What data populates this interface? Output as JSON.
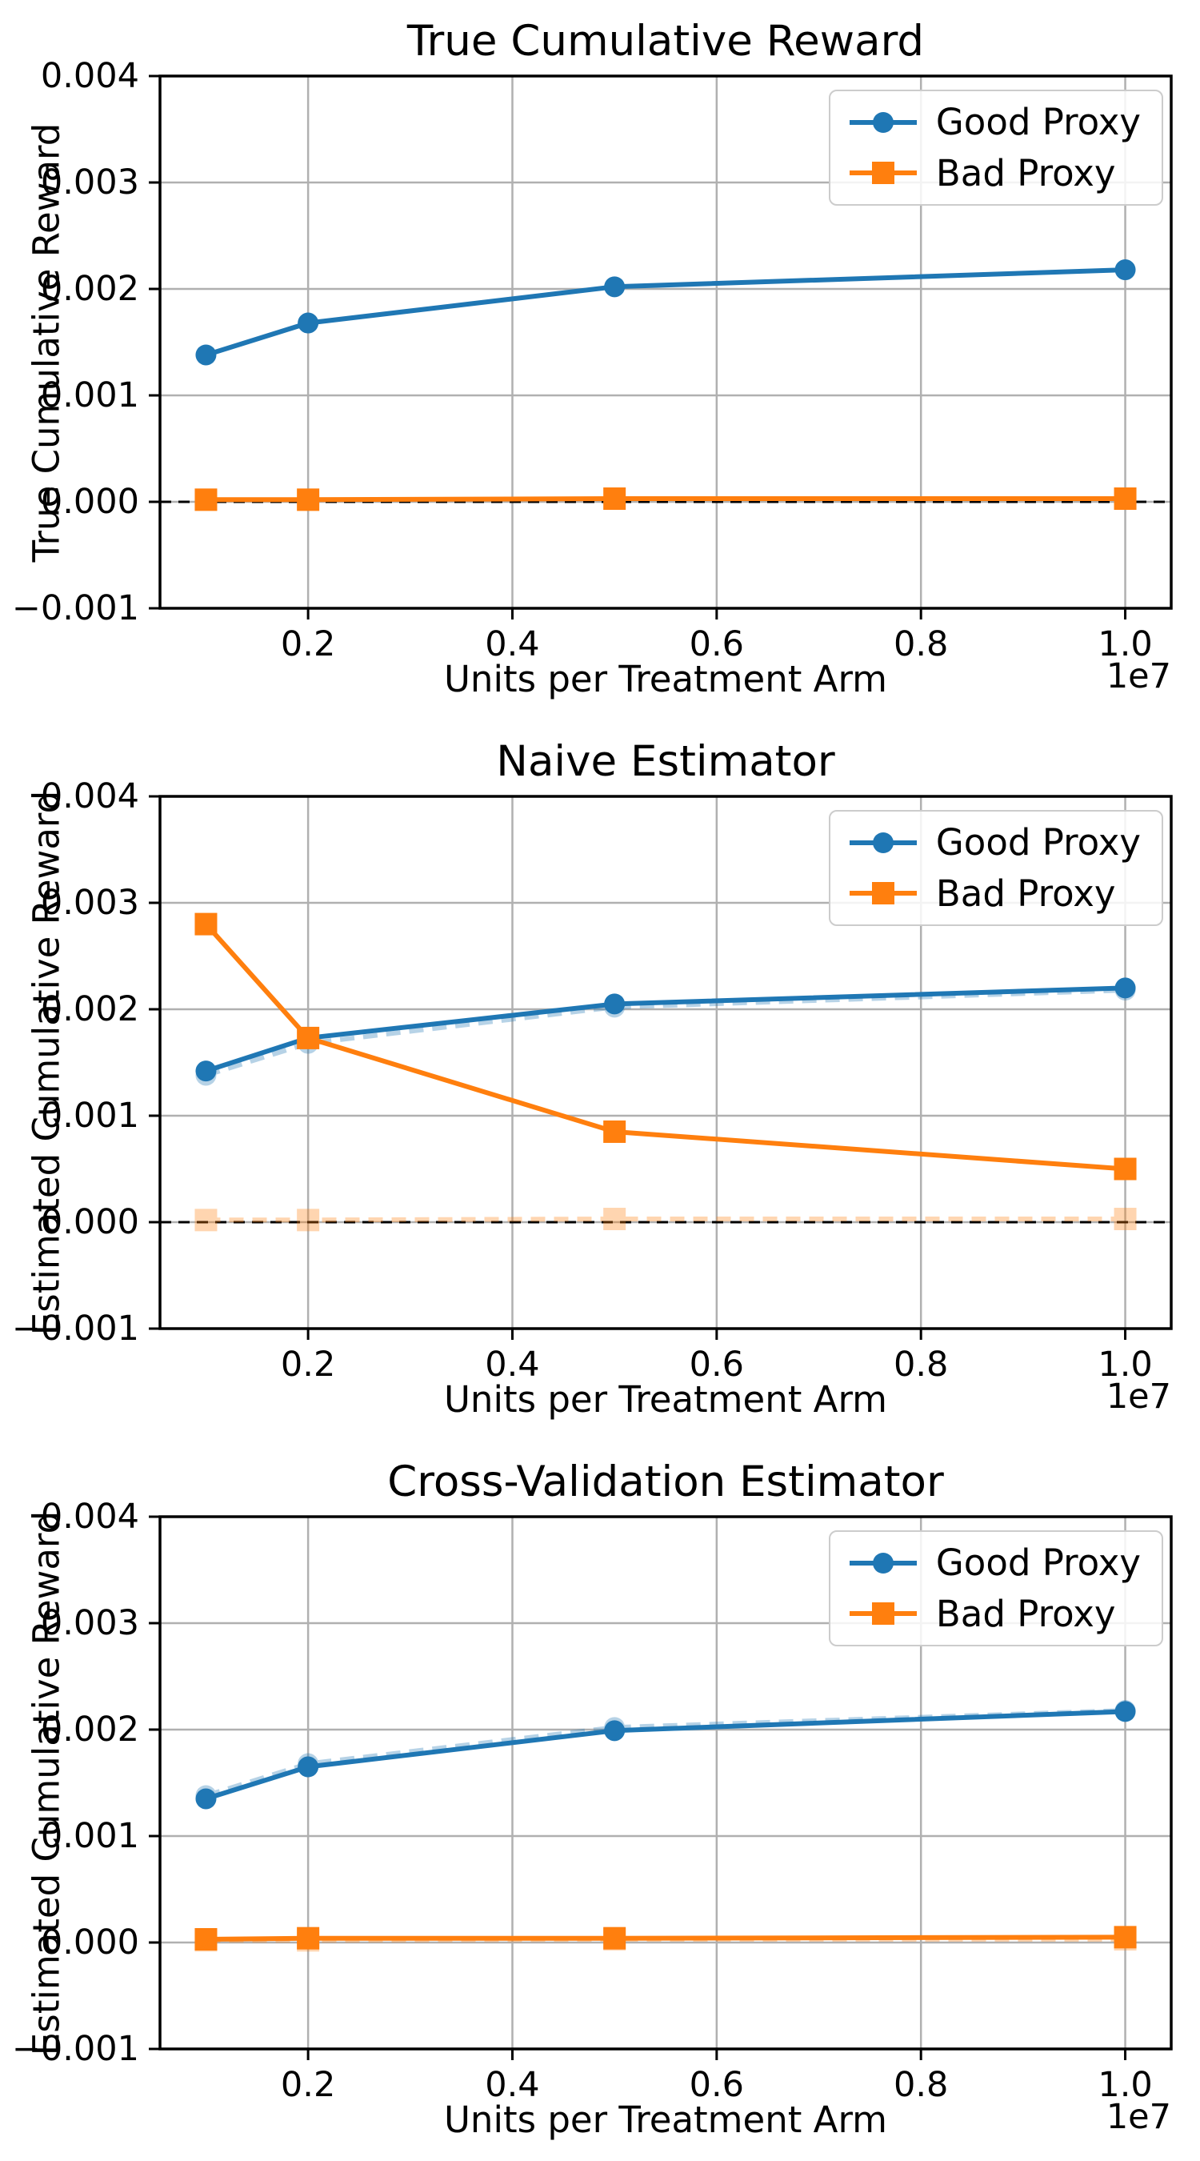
{
  "figure": {
    "background": "#ffffff",
    "text_color": "#000000",
    "grid_color": "#b0b0b0",
    "spine_color": "#000000",
    "zero_line_color": "#000000",
    "good_proxy_color": "#1f77b4",
    "bad_proxy_color": "#ff7f0e",
    "faded_opacity": 0.32
  },
  "chart_data": [
    {
      "type": "line",
      "title": "True Cumulative Reward",
      "xlabel": "Units per Treatment Arm",
      "ylabel": "True Cumulative Reward",
      "x_offset_text": "1e7",
      "x_units_1e7": [
        0.1,
        0.2,
        0.5,
        1.0
      ],
      "xlim": [
        0.055,
        1.045
      ],
      "ylim": [
        -0.001,
        0.004
      ],
      "x_ticks": [
        {
          "v": 0.2,
          "label": "0.2"
        },
        {
          "v": 0.4,
          "label": "0.4"
        },
        {
          "v": 0.6,
          "label": "0.6"
        },
        {
          "v": 0.8,
          "label": "0.8"
        },
        {
          "v": 1.0,
          "label": "1.0"
        }
      ],
      "y_ticks": [
        {
          "v": 0.004,
          "label": "0.004"
        },
        {
          "v": 0.003,
          "label": "0.003"
        },
        {
          "v": 0.002,
          "label": "0.002"
        },
        {
          "v": 0.001,
          "label": "0.001"
        },
        {
          "v": 0.0,
          "label": "0.000"
        },
        {
          "v": -0.001,
          "label": "−0.001"
        }
      ],
      "grid": true,
      "zero_dashed_line": true,
      "legend_position": "upper right",
      "legend_items": [
        {
          "label": "Good Proxy",
          "color": "#1f77b4",
          "marker": "circle"
        },
        {
          "label": "Bad Proxy",
          "color": "#ff7f0e",
          "marker": "square"
        }
      ],
      "series": [
        {
          "name": "Good Proxy",
          "color": "#1f77b4",
          "marker": "circle",
          "line": "solid",
          "opacity": 1,
          "values": [
            0.00138,
            0.00168,
            0.00202,
            0.00218
          ]
        },
        {
          "name": "Bad Proxy",
          "color": "#ff7f0e",
          "marker": "square",
          "line": "solid",
          "opacity": 1,
          "values": [
            2e-05,
            2e-05,
            3e-05,
            3e-05
          ]
        }
      ]
    },
    {
      "type": "line",
      "title": "Naive Estimator",
      "xlabel": "Units per Treatment Arm",
      "ylabel": "Estimated Cumulative Reward",
      "x_offset_text": "1e7",
      "x_units_1e7": [
        0.1,
        0.2,
        0.5,
        1.0
      ],
      "xlim": [
        0.055,
        1.045
      ],
      "ylim": [
        -0.001,
        0.004
      ],
      "x_ticks": [
        {
          "v": 0.2,
          "label": "0.2"
        },
        {
          "v": 0.4,
          "label": "0.4"
        },
        {
          "v": 0.6,
          "label": "0.6"
        },
        {
          "v": 0.8,
          "label": "0.8"
        },
        {
          "v": 1.0,
          "label": "1.0"
        }
      ],
      "y_ticks": [
        {
          "v": 0.004,
          "label": "0.004"
        },
        {
          "v": 0.003,
          "label": "0.003"
        },
        {
          "v": 0.002,
          "label": "0.002"
        },
        {
          "v": 0.001,
          "label": "0.001"
        },
        {
          "v": 0.0,
          "label": "0.000"
        },
        {
          "v": -0.001,
          "label": "−0.001"
        }
      ],
      "grid": true,
      "zero_dashed_line": true,
      "legend_position": "upper right",
      "legend_items": [
        {
          "label": "Good Proxy",
          "color": "#1f77b4",
          "marker": "circle"
        },
        {
          "label": "Bad Proxy",
          "color": "#ff7f0e",
          "marker": "square"
        }
      ],
      "series": [
        {
          "name": "Good Proxy (true value, faded)",
          "color": "#1f77b4",
          "marker": "circle",
          "line": "dashed",
          "opacity": 0.32,
          "values": [
            0.00138,
            0.00168,
            0.00202,
            0.00218
          ]
        },
        {
          "name": "Bad Proxy (true value, faded)",
          "color": "#ff7f0e",
          "marker": "square",
          "line": "dashed",
          "opacity": 0.32,
          "values": [
            2e-05,
            2e-05,
            3e-05,
            3e-05
          ]
        },
        {
          "name": "Good Proxy",
          "color": "#1f77b4",
          "marker": "circle",
          "line": "solid",
          "opacity": 1,
          "values": [
            0.00142,
            0.00173,
            0.00205,
            0.0022
          ]
        },
        {
          "name": "Bad Proxy",
          "color": "#ff7f0e",
          "marker": "square",
          "line": "solid",
          "opacity": 1,
          "values": [
            0.0028,
            0.00173,
            0.00085,
            0.0005
          ]
        }
      ]
    },
    {
      "type": "line",
      "title": "Cross-Validation Estimator",
      "xlabel": "Units per Treatment Arm",
      "ylabel": "Estimated Cumulative Reward",
      "x_offset_text": "1e7",
      "x_units_1e7": [
        0.1,
        0.2,
        0.5,
        1.0
      ],
      "xlim": [
        0.055,
        1.045
      ],
      "ylim": [
        -0.001,
        0.004
      ],
      "x_ticks": [
        {
          "v": 0.2,
          "label": "0.2"
        },
        {
          "v": 0.4,
          "label": "0.4"
        },
        {
          "v": 0.6,
          "label": "0.6"
        },
        {
          "v": 0.8,
          "label": "0.8"
        },
        {
          "v": 1.0,
          "label": "1.0"
        }
      ],
      "y_ticks": [
        {
          "v": 0.004,
          "label": "0.004"
        },
        {
          "v": 0.003,
          "label": "0.003"
        },
        {
          "v": 0.002,
          "label": "0.002"
        },
        {
          "v": 0.001,
          "label": "0.001"
        },
        {
          "v": 0.0,
          "label": "0.000"
        },
        {
          "v": -0.001,
          "label": "−0.001"
        }
      ],
      "grid": true,
      "zero_dashed_line": false,
      "legend_position": "upper right",
      "legend_items": [
        {
          "label": "Good Proxy",
          "color": "#1f77b4",
          "marker": "circle"
        },
        {
          "label": "Bad Proxy",
          "color": "#ff7f0e",
          "marker": "square"
        }
      ],
      "series": [
        {
          "name": "Good Proxy (true value, faded)",
          "color": "#1f77b4",
          "marker": "circle",
          "line": "dashed",
          "opacity": 0.32,
          "values": [
            0.00138,
            0.00168,
            0.00202,
            0.00218
          ]
        },
        {
          "name": "Bad Proxy (true value, faded)",
          "color": "#ff7f0e",
          "marker": "square",
          "line": "dashed",
          "opacity": 0.32,
          "values": [
            2e-05,
            2e-05,
            3e-05,
            3e-05
          ]
        },
        {
          "name": "Good Proxy",
          "color": "#1f77b4",
          "marker": "circle",
          "line": "solid",
          "opacity": 1,
          "values": [
            0.00135,
            0.00165,
            0.00199,
            0.00217
          ]
        },
        {
          "name": "Bad Proxy",
          "color": "#ff7f0e",
          "marker": "square",
          "line": "solid",
          "opacity": 1,
          "values": [
            3e-05,
            4e-05,
            4e-05,
            5e-05
          ]
        }
      ]
    }
  ]
}
